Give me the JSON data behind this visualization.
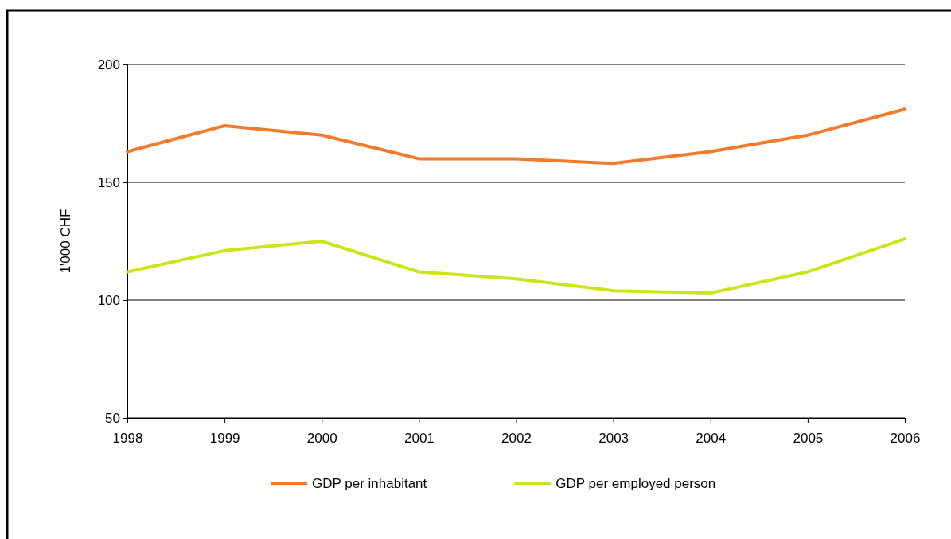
{
  "chart_data": {
    "type": "line",
    "ylabel": "1'000 CHF",
    "x": [
      1998,
      1999,
      2000,
      2001,
      2002,
      2003,
      2004,
      2005,
      2006
    ],
    "xlim": [
      1998,
      2006
    ],
    "xticks": [
      1998,
      1999,
      2000,
      2001,
      2002,
      2003,
      2004,
      2005,
      2006
    ],
    "ylim": [
      50,
      200
    ],
    "yticks": [
      50,
      100,
      150,
      200
    ],
    "grid": "y",
    "legend": "bottom",
    "marker": "none",
    "line_style": "solid",
    "series": [
      {
        "name": "GDP per inhabitant",
        "color": "#f57b2c",
        "values": [
          163,
          174,
          170,
          160,
          160,
          158,
          163,
          170,
          181
        ]
      },
      {
        "name": "GDP per employed person",
        "color": "#cce41a",
        "values": [
          112,
          121,
          125,
          112,
          109,
          104,
          103,
          112,
          126
        ]
      }
    ]
  }
}
